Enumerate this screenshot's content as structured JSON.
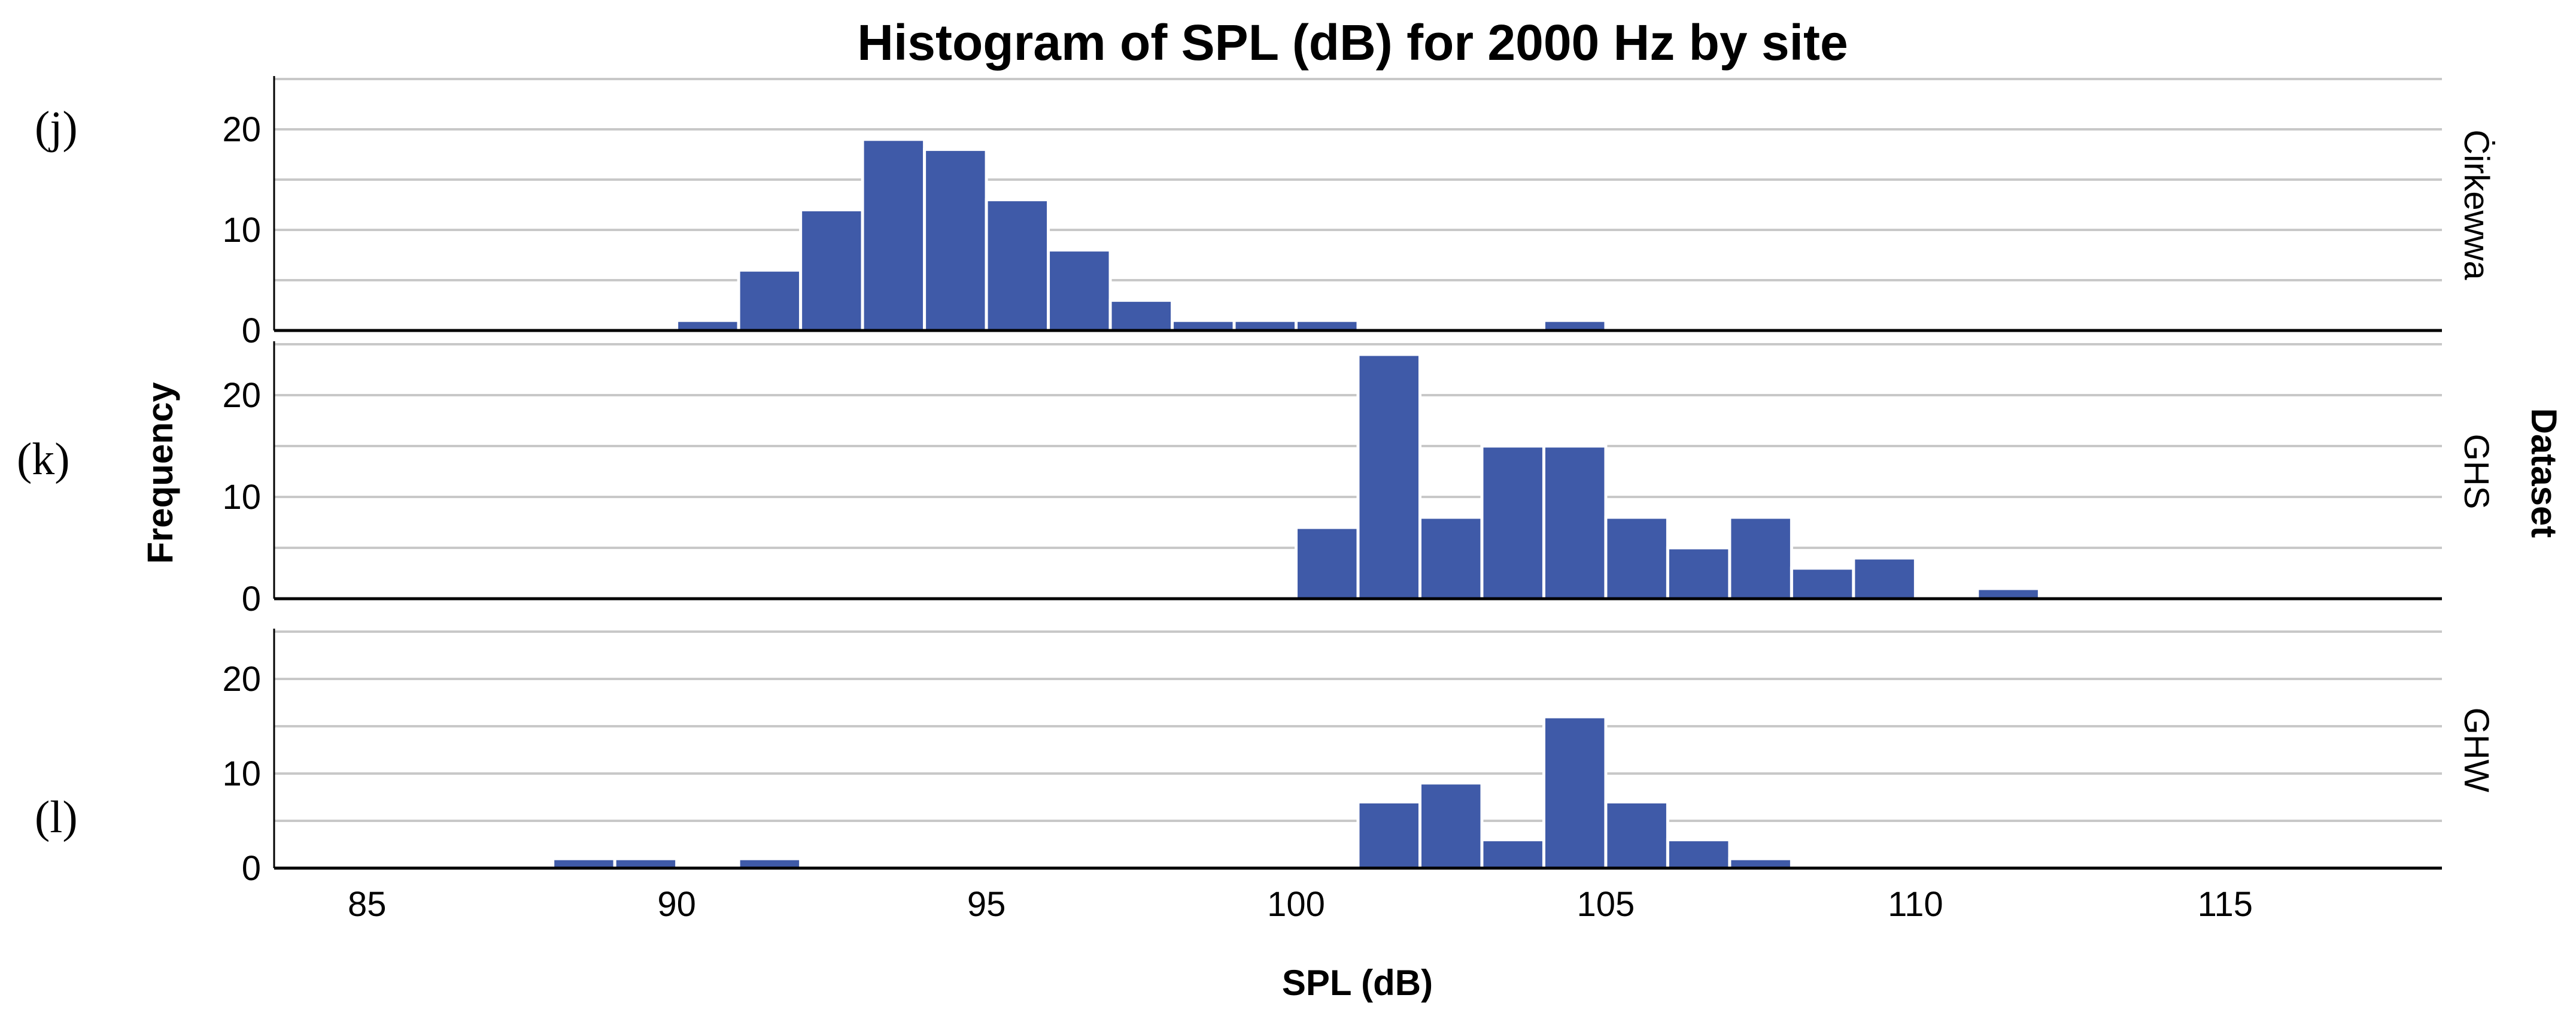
{
  "chart_data": {
    "type": "bar",
    "title": "Histogram of SPL (dB) for 2000 Hz by site",
    "xlabel": "SPL (dB)",
    "ylabel": "Frequency",
    "facet_label": "Dataset",
    "xlim": [
      83.5,
      118.5
    ],
    "ylim": [
      0,
      25
    ],
    "x_ticks": [
      85,
      90,
      95,
      100,
      105,
      110,
      115
    ],
    "y_ticks": [
      0,
      10,
      20
    ],
    "grid": "horizontal",
    "bin_width": 1,
    "bar_color": "#3f5aa8",
    "panels": [
      {
        "letter": "(j)",
        "name": "Ċirkewwa",
        "bins": [
          {
            "x0": 90.0,
            "x1": 91.0,
            "count": 1
          },
          {
            "x0": 91.0,
            "x1": 92.0,
            "count": 6
          },
          {
            "x0": 92.0,
            "x1": 93.0,
            "count": 12
          },
          {
            "x0": 93.0,
            "x1": 94.0,
            "count": 19
          },
          {
            "x0": 94.0,
            "x1": 95.0,
            "count": 18
          },
          {
            "x0": 95.0,
            "x1": 96.0,
            "count": 13
          },
          {
            "x0": 96.0,
            "x1": 97.0,
            "count": 8
          },
          {
            "x0": 97.0,
            "x1": 98.0,
            "count": 3
          },
          {
            "x0": 98.0,
            "x1": 99.0,
            "count": 1
          },
          {
            "x0": 99.0,
            "x1": 100.0,
            "count": 1
          },
          {
            "x0": 100.0,
            "x1": 101.0,
            "count": 1
          },
          {
            "x0": 104.0,
            "x1": 105.0,
            "count": 1
          }
        ]
      },
      {
        "letter": "(k)",
        "name": "GHS",
        "bins": [
          {
            "x0": 100.0,
            "x1": 101.0,
            "count": 7
          },
          {
            "x0": 101.0,
            "x1": 102.0,
            "count": 24
          },
          {
            "x0": 102.0,
            "x1": 103.0,
            "count": 8
          },
          {
            "x0": 103.0,
            "x1": 104.0,
            "count": 15
          },
          {
            "x0": 104.0,
            "x1": 105.0,
            "count": 15
          },
          {
            "x0": 105.0,
            "x1": 106.0,
            "count": 8
          },
          {
            "x0": 106.0,
            "x1": 107.0,
            "count": 5
          },
          {
            "x0": 107.0,
            "x1": 108.0,
            "count": 8
          },
          {
            "x0": 108.0,
            "x1": 109.0,
            "count": 3
          },
          {
            "x0": 109.0,
            "x1": 110.0,
            "count": 4
          },
          {
            "x0": 111.0,
            "x1": 112.0,
            "count": 1
          }
        ]
      },
      {
        "letter": "(l)",
        "name": "GHW",
        "bins": [
          {
            "x0": 88.0,
            "x1": 89.0,
            "count": 1
          },
          {
            "x0": 89.0,
            "x1": 90.0,
            "count": 1
          },
          {
            "x0": 91.0,
            "x1": 92.0,
            "count": 1
          },
          {
            "x0": 101.0,
            "x1": 102.0,
            "count": 7
          },
          {
            "x0": 102.0,
            "x1": 103.0,
            "count": 9
          },
          {
            "x0": 103.0,
            "x1": 104.0,
            "count": 3
          },
          {
            "x0": 104.0,
            "x1": 105.0,
            "count": 16
          },
          {
            "x0": 105.0,
            "x1": 106.0,
            "count": 7
          },
          {
            "x0": 106.0,
            "x1": 107.0,
            "count": 3
          },
          {
            "x0": 107.0,
            "x1": 108.0,
            "count": 1
          }
        ]
      }
    ]
  }
}
